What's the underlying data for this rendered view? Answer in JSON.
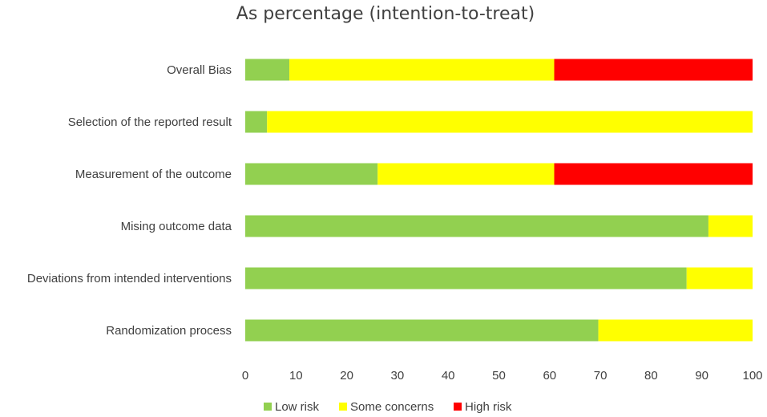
{
  "chart_data": {
    "type": "bar",
    "orientation": "horizontal",
    "stacked": true,
    "title": "As percentage (intention-to-treat)",
    "xlabel": "",
    "ylabel": "",
    "xlim": [
      0,
      100
    ],
    "x_ticks": [
      "0",
      "10",
      "20",
      "30",
      "40",
      "50",
      "60",
      "70",
      "80",
      "90",
      "100"
    ],
    "grid": false,
    "legend_position": "bottom",
    "categories": [
      "Overall Bias",
      "Selection of the reported result",
      "Measurement of the outcome",
      "Mising outcome data",
      "Deviations from intended interventions",
      "Randomization process"
    ],
    "series": [
      {
        "name": "Low risk",
        "color": "#92D050",
        "values": [
          8.7,
          4.3,
          26.1,
          91.3,
          87.0,
          69.6
        ]
      },
      {
        "name": "Some concerns",
        "color": "#FFFF00",
        "values": [
          52.2,
          95.7,
          34.8,
          8.7,
          13.0,
          30.4
        ]
      },
      {
        "name": "High risk",
        "color": "#FF0000",
        "values": [
          39.1,
          0,
          39.1,
          0,
          0,
          0
        ]
      }
    ]
  }
}
